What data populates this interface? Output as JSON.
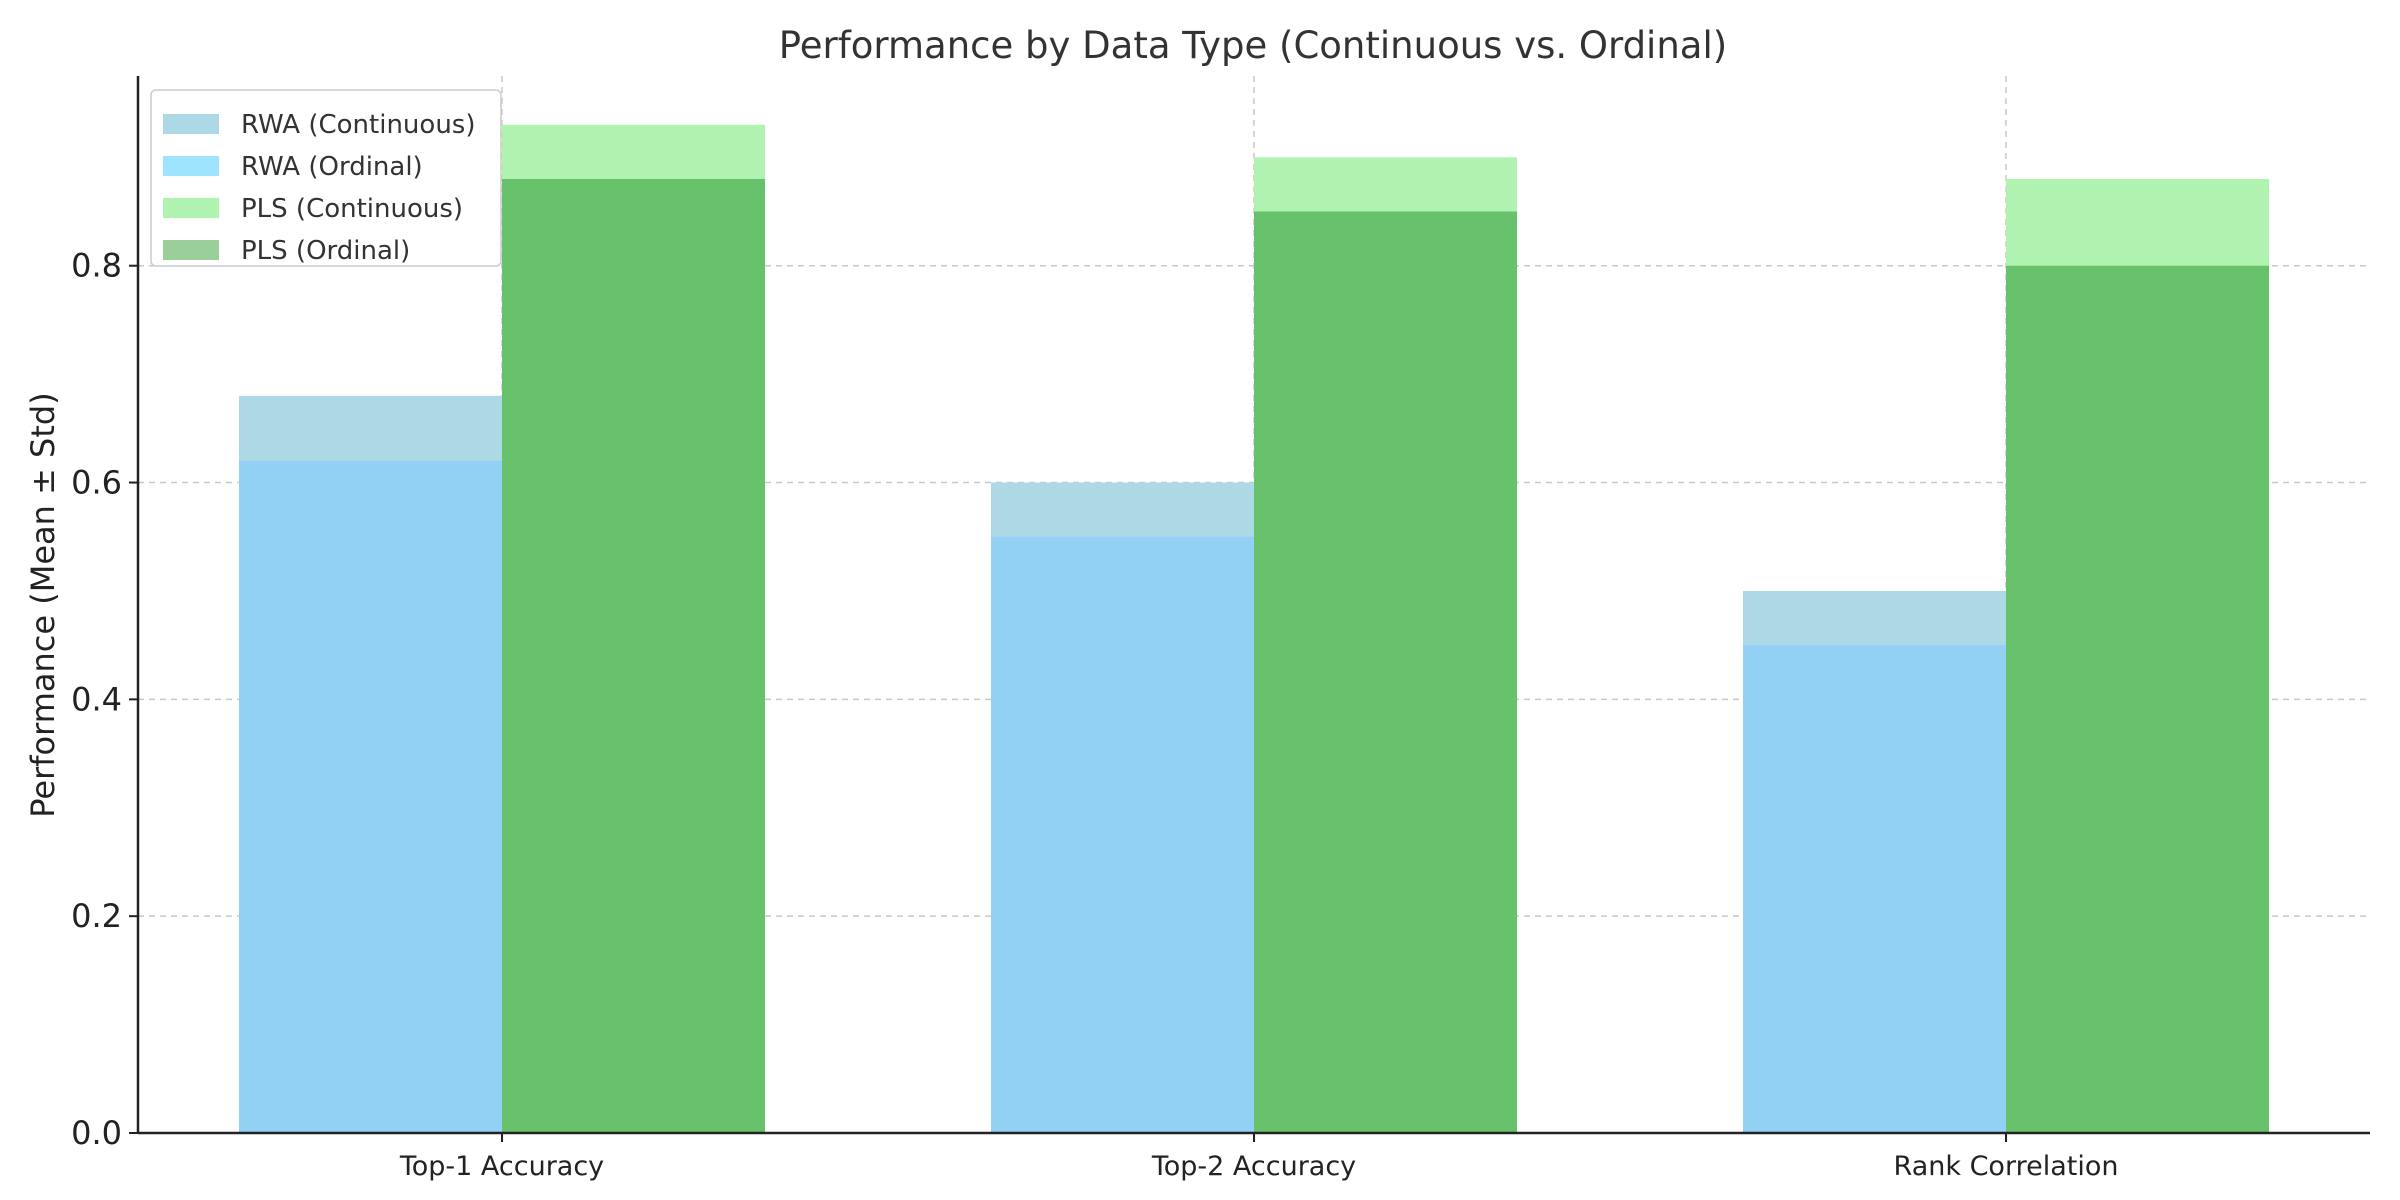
{
  "chart_data": {
    "type": "bar",
    "title": "Performance by Data Type (Continuous vs. Ordinal)",
    "xlabel": "",
    "ylabel": "Performance (Mean ± Std)",
    "categories": [
      "Top-1 Accuracy",
      "Top-2 Accuracy",
      "Rank Correlation"
    ],
    "ylim": [
      0,
      0.975
    ],
    "yticks": [
      0.0,
      0.2,
      0.4,
      0.6,
      0.8
    ],
    "ytick_labels": [
      "0.0",
      "0.2",
      "0.4",
      "0.6",
      "0.8"
    ],
    "grid": true,
    "legend_position": "top-left",
    "series": [
      {
        "name": "RWA (Continuous)",
        "group": "RWA",
        "values": [
          0.68,
          0.6,
          0.5
        ],
        "color": "#ADD8E6"
      },
      {
        "name": "RWA (Ordinal)",
        "group": "RWA",
        "values": [
          0.62,
          0.55,
          0.45
        ],
        "color": "#87CEFA"
      },
      {
        "name": "PLS (Continuous)",
        "group": "PLS",
        "values": [
          0.93,
          0.9,
          0.88
        ],
        "color": "#98FB98"
      },
      {
        "name": "PLS (Ordinal)",
        "group": "PLS",
        "values": [
          0.88,
          0.85,
          0.8
        ],
        "color": "#4CAF50"
      }
    ],
    "legend_swatch_colors": [
      "#ADD8E6",
      "#9EE4FF",
      "#B0F3B0",
      "#9ACF9A"
    ]
  }
}
